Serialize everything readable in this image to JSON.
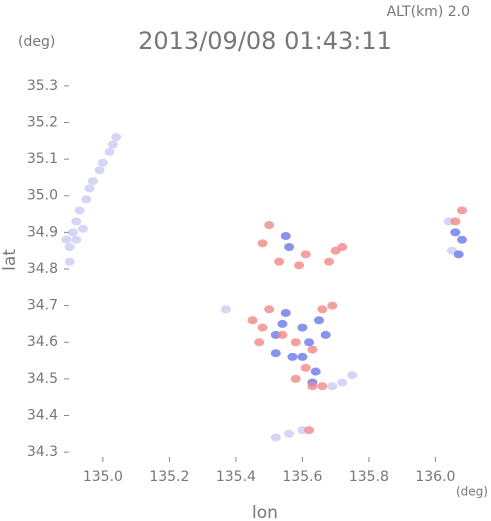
{
  "chart_data": {
    "type": "scatter",
    "header": "ALT(km) 2.0",
    "title": "2013/09/08 01:43:11",
    "y_unit": "(deg)",
    "x_unit": "(deg)",
    "xlabel": "lon",
    "ylabel": "lat",
    "xlim": [
      134.883,
      136.086
    ],
    "ylim": [
      34.273,
      35.357
    ],
    "xticks": [
      {
        "value": 135,
        "label": "135.0"
      },
      135.2,
      135.4,
      135.6,
      135.8,
      {
        "value": 136,
        "label": "136.0"
      }
    ],
    "yticks": [
      34.3,
      34.4,
      34.5,
      34.6,
      34.7,
      34.8,
      34.9,
      {
        "value": 35,
        "label": "35.0"
      },
      35.1,
      35.2,
      35.3
    ],
    "series": [
      {
        "color": "#c9cbf5",
        "x": [
          134.9,
          134.9,
          134.91,
          134.92,
          134.93,
          134.95,
          134.96,
          134.97,
          134.99,
          135.0,
          135.02,
          135.03,
          135.04,
          134.89,
          134.92,
          134.94,
          135.75,
          135.72,
          135.69,
          135.56,
          135.6,
          135.52,
          136.05,
          136.04,
          135.37
        ],
        "y": [
          34.82,
          34.86,
          34.9,
          34.93,
          34.96,
          34.99,
          35.02,
          35.04,
          35.07,
          35.09,
          35.12,
          35.14,
          35.16,
          34.88,
          34.88,
          34.91,
          34.51,
          34.49,
          34.48,
          34.35,
          34.36,
          34.34,
          34.85,
          34.93,
          34.69
        ]
      },
      {
        "color": "#6a78e8",
        "x": [
          135.55,
          135.56,
          135.52,
          135.55,
          135.6,
          135.62,
          135.65,
          135.57,
          135.6,
          135.64,
          135.52,
          135.67,
          136.07,
          136.08,
          136.06,
          135.63,
          135.54
        ],
        "y": [
          34.89,
          34.86,
          34.62,
          34.68,
          34.64,
          34.6,
          34.66,
          34.56,
          34.56,
          34.52,
          34.57,
          34.62,
          34.84,
          34.88,
          34.9,
          34.49,
          34.65
        ]
      },
      {
        "color": "#f08888",
        "x": [
          135.5,
          135.48,
          135.53,
          135.59,
          135.61,
          135.68,
          135.7,
          135.72,
          135.45,
          135.48,
          135.5,
          135.54,
          135.58,
          135.63,
          135.66,
          135.69,
          135.61,
          135.63,
          135.66,
          135.58,
          135.47,
          136.08,
          136.06,
          135.62
        ],
        "y": [
          34.92,
          34.87,
          34.82,
          34.81,
          34.84,
          34.82,
          34.85,
          34.86,
          34.66,
          34.64,
          34.69,
          34.62,
          34.6,
          34.58,
          34.69,
          34.7,
          34.53,
          34.48,
          34.48,
          34.5,
          34.6,
          34.96,
          34.93,
          34.36
        ]
      }
    ]
  }
}
